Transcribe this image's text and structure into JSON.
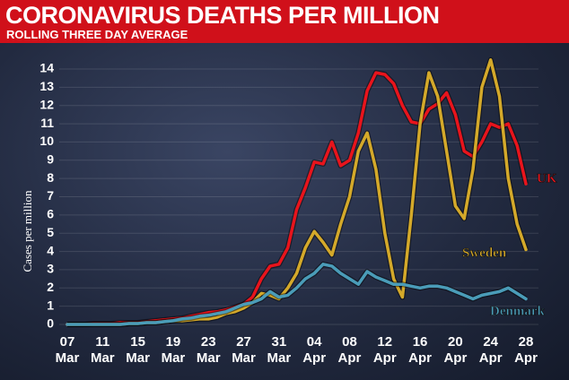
{
  "chart_data": {
    "type": "line",
    "title": "CORONAVIRUS DEATHS PER MILLION",
    "subtitle": "ROLLING THREE DAY AVERAGE",
    "y_label": "Cases per million",
    "categories": [
      "07 Mar",
      null,
      null,
      null,
      "11 Mar",
      null,
      null,
      null,
      "15 Mar",
      null,
      null,
      null,
      "19 Mar",
      null,
      null,
      null,
      "23 Mar",
      null,
      null,
      null,
      "27 Mar",
      null,
      null,
      null,
      "31 Mar",
      null,
      null,
      null,
      "04 Apr",
      null,
      null,
      null,
      "08 Apr",
      null,
      null,
      null,
      "12 Apr",
      null,
      null,
      null,
      "16 Apr",
      null,
      null,
      null,
      "20 Apr",
      null,
      null,
      null,
      "24 Apr",
      null,
      null,
      null,
      "28 Apr"
    ],
    "series": [
      {
        "name": "UK",
        "color": "#e8141c",
        "values": [
          0,
          0,
          0,
          0.05,
          0.05,
          0.05,
          0.1,
          0.1,
          0.1,
          0.15,
          0.2,
          0.25,
          0.3,
          0.35,
          0.45,
          0.55,
          0.65,
          0.7,
          0.8,
          0.95,
          1.1,
          1.5,
          2.5,
          3.2,
          3.3,
          4.2,
          6.3,
          7.5,
          8.9,
          8.8,
          10,
          8.7,
          9,
          10.5,
          12.8,
          13.8,
          13.7,
          13.2,
          12,
          11.1,
          11,
          11.8,
          12.1,
          12.7,
          11.5,
          9.5,
          9.2,
          10,
          11,
          10.8,
          11,
          9.8,
          7.7
        ]
      },
      {
        "name": "Sweden",
        "color": "#d4a92a",
        "values": [
          0,
          0,
          0,
          0,
          0,
          0,
          0,
          0.05,
          0.05,
          0.1,
          0.1,
          0.15,
          0.2,
          0.2,
          0.25,
          0.3,
          0.3,
          0.4,
          0.6,
          0.7,
          0.9,
          1.2,
          1.7,
          1.6,
          1.4,
          2.0,
          2.8,
          4.2,
          5.1,
          4.5,
          3.8,
          5.5,
          7,
          9.5,
          10.5,
          8.5,
          5,
          2.5,
          1.5,
          6,
          11,
          13.8,
          12.5,
          9.5,
          6.5,
          5.8,
          8.5,
          13,
          14.5,
          12.5,
          8,
          5.5,
          4.1
        ]
      },
      {
        "name": "Denmark",
        "color": "#4a9cb8",
        "values": [
          0,
          0,
          0,
          0,
          0,
          0,
          0,
          0.05,
          0.05,
          0.1,
          0.1,
          0.15,
          0.2,
          0.3,
          0.35,
          0.45,
          0.5,
          0.6,
          0.7,
          0.9,
          1.1,
          1.2,
          1.4,
          1.8,
          1.5,
          1.6,
          2.0,
          2.5,
          2.8,
          3.3,
          3.2,
          2.8,
          2.5,
          2.2,
          2.9,
          2.6,
          2.4,
          2.2,
          2.2,
          2.1,
          2.0,
          2.1,
          2.1,
          2.0,
          1.8,
          1.6,
          1.4,
          1.6,
          1.7,
          1.8,
          2.0,
          1.7,
          1.4
        ]
      }
    ],
    "ylim": [
      0,
      14.5
    ],
    "yticks": [
      0,
      1,
      2,
      3,
      4,
      5,
      6,
      7,
      8,
      9,
      10,
      11,
      12,
      13,
      14
    ],
    "grid": true
  }
}
